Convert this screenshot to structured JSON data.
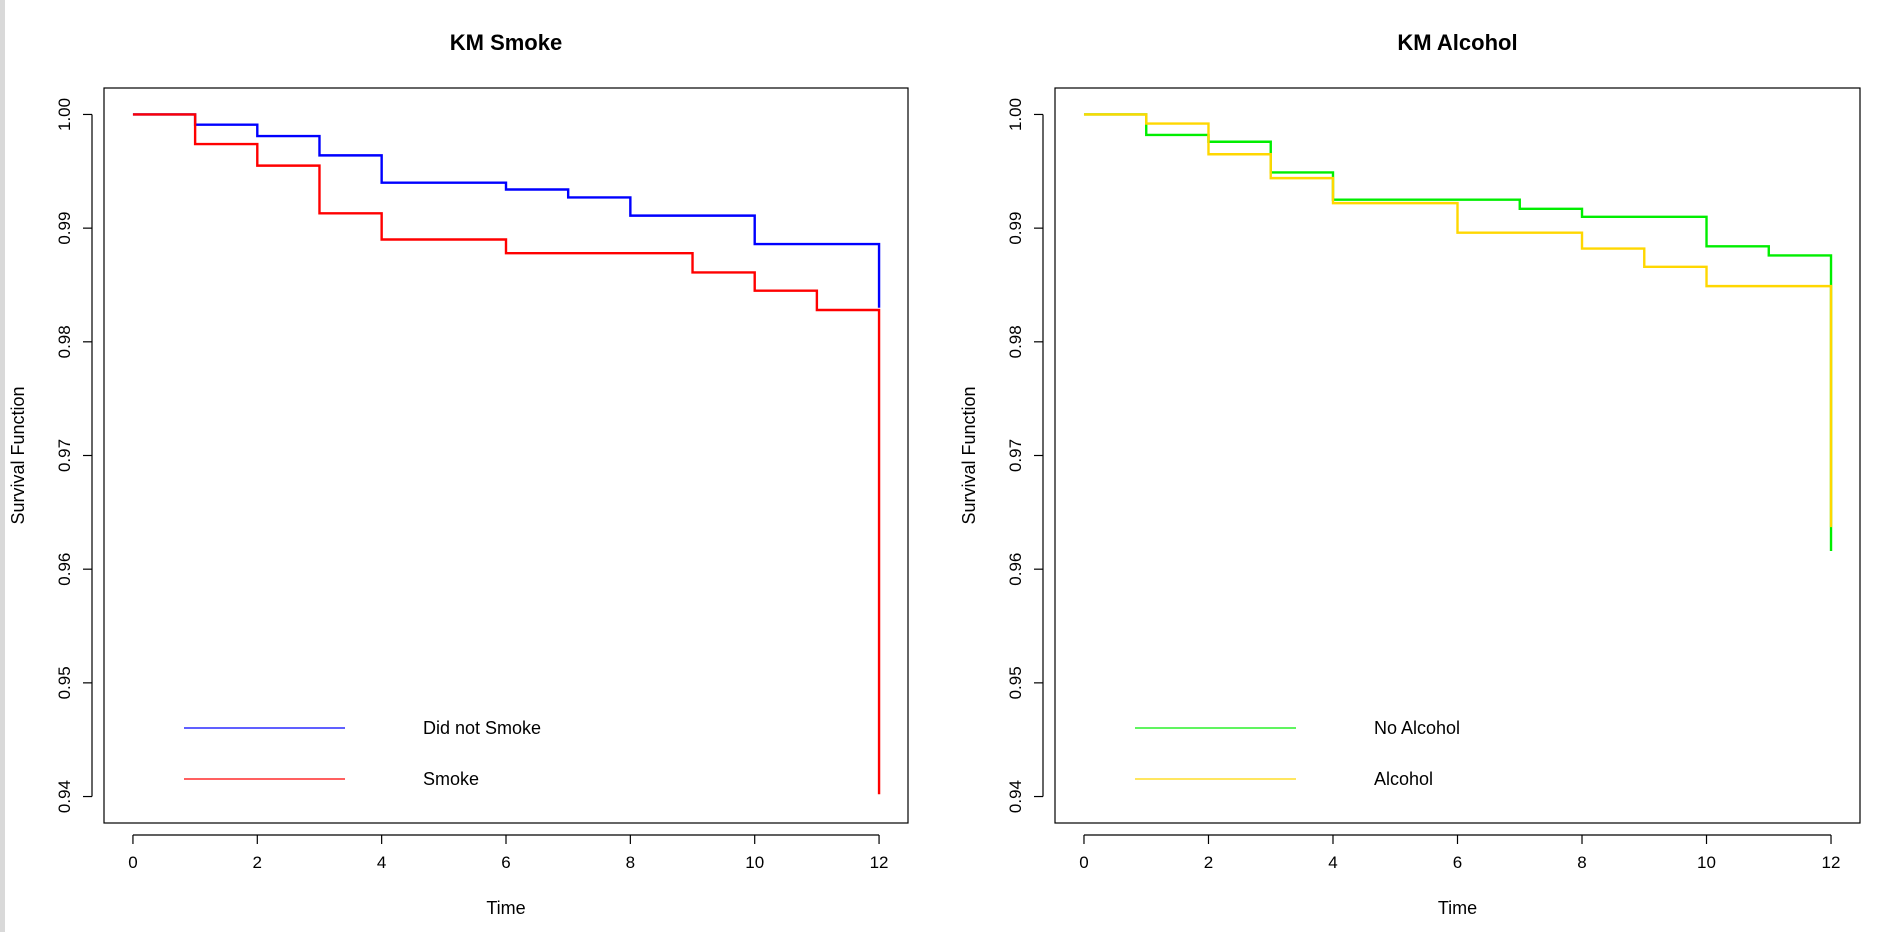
{
  "chart_data": [
    {
      "type": "line",
      "step": true,
      "title": "KM Smoke",
      "xlabel": "Time",
      "ylabel": "Survival Function",
      "xlim": [
        0,
        12
      ],
      "ylim": [
        0.94,
        1.0
      ],
      "xticks": [
        "0",
        "2",
        "4",
        "6",
        "8",
        "10",
        "12"
      ],
      "yticks": [
        "0.94",
        "0.95",
        "0.96",
        "0.97",
        "0.98",
        "0.99",
        "1.00"
      ],
      "legend": {
        "position": "bottom-left"
      },
      "series": [
        {
          "name": "Did not Smoke",
          "color": "#0000ff",
          "x": [
            0,
            1,
            2,
            3,
            4,
            6,
            7,
            8,
            10,
            12,
            12
          ],
          "y": [
            1.0,
            0.9991,
            0.9981,
            0.9964,
            0.994,
            0.9934,
            0.9927,
            0.9911,
            0.9886,
            0.9886,
            0.983
          ]
        },
        {
          "name": "Smoke",
          "color": "#ff0000",
          "x": [
            0,
            1,
            2,
            3,
            4,
            6,
            9,
            10,
            11,
            12,
            12
          ],
          "y": [
            1.0,
            0.9974,
            0.9955,
            0.9913,
            0.989,
            0.9878,
            0.9861,
            0.9845,
            0.9828,
            0.9828,
            0.9402
          ]
        }
      ]
    },
    {
      "type": "line",
      "step": true,
      "title": "KM Alcohol",
      "xlabel": "Time",
      "ylabel": "Survival Function",
      "xlim": [
        0,
        12
      ],
      "ylim": [
        0.94,
        1.0
      ],
      "xticks": [
        "0",
        "2",
        "4",
        "6",
        "8",
        "10",
        "12"
      ],
      "yticks": [
        "0.94",
        "0.95",
        "0.96",
        "0.97",
        "0.98",
        "0.99",
        "1.00"
      ],
      "legend": {
        "position": "bottom-left"
      },
      "series": [
        {
          "name": "No Alcohol",
          "color": "#00ee00",
          "x": [
            0,
            1,
            2,
            3,
            4,
            7,
            8,
            10,
            11,
            12,
            12
          ],
          "y": [
            1.0,
            0.9982,
            0.9976,
            0.9949,
            0.9925,
            0.9917,
            0.991,
            0.9884,
            0.9876,
            0.9876,
            0.9616
          ]
        },
        {
          "name": "Alcohol",
          "color": "#ffd700",
          "x": [
            0,
            1,
            2,
            3,
            4,
            6,
            8,
            9,
            10,
            12,
            12
          ],
          "y": [
            1.0,
            0.9992,
            0.9965,
            0.9944,
            0.9922,
            0.9896,
            0.9882,
            0.9866,
            0.9849,
            0.9849,
            0.9637
          ]
        }
      ]
    }
  ]
}
